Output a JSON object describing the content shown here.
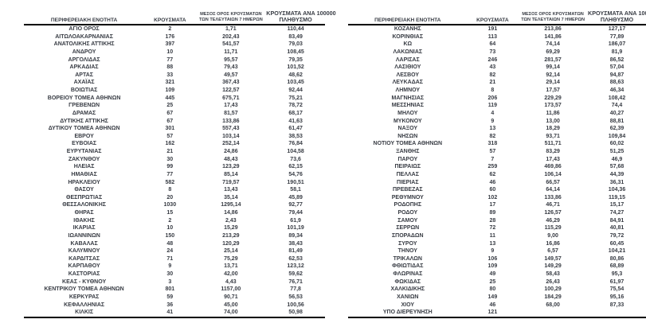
{
  "headers": {
    "region": "ΠΕΡΙΦΕΡΕΙΑΚΗ ΕΝΟΤΗΤΑ",
    "cases": "ΚΡΟΥΣΜΑΤΑ",
    "avg7_line1": "ΜΕΣΟΣ ΟΡΟΣ ΚΡΟΥΣΜΑΤΩΝ",
    "avg7_line2": "ΤΩΝ ΤΕΛΕΥΤΑΙΩΝ 7 ΗΜΕΡΩΝ",
    "per100k_line1": "ΚΡΟΥΣΜΑΤΑ ΑΝΑ 100000",
    "per100k_line2": "ΠΛΗΘΥΣΜΟ"
  },
  "colors": {
    "text": "#383c44",
    "rule": "#000000",
    "background": "#ffffff"
  },
  "left_table": {
    "rows": [
      {
        "region": "ΑΓΙΟ ΟΡΟΣ",
        "cases": "2",
        "avg7": "1,71",
        "per100k": "110,44"
      },
      {
        "region": "ΑΙΤΩΛΟΑΚΑΡΝΑΝΙΑΣ",
        "cases": "176",
        "avg7": "202,43",
        "per100k": "83,49"
      },
      {
        "region": "ΑΝΑΤΟΛΙΚΗΣ ΑΤΤΙΚΗΣ",
        "cases": "397",
        "avg7": "541,57",
        "per100k": "79,03"
      },
      {
        "region": "ΑΝΔΡΟΥ",
        "cases": "10",
        "avg7": "11,71",
        "per100k": "108,45"
      },
      {
        "region": "ΑΡΓΟΛΙΔΑΣ",
        "cases": "77",
        "avg7": "95,57",
        "per100k": "79,35"
      },
      {
        "region": "ΑΡΚΑΔΙΑΣ",
        "cases": "88",
        "avg7": "79,43",
        "per100k": "101,52"
      },
      {
        "region": "ΑΡΤΑΣ",
        "cases": "33",
        "avg7": "49,57",
        "per100k": "48,62"
      },
      {
        "region": "ΑΧΑΪΑΣ",
        "cases": "321",
        "avg7": "367,43",
        "per100k": "103,45"
      },
      {
        "region": "ΒΟΙΩΤΙΑΣ",
        "cases": "109",
        "avg7": "122,57",
        "per100k": "92,44"
      },
      {
        "region": "ΒΟΡΕΙΟΥ ΤΟΜΕΑ ΑΘΗΝΩΝ",
        "cases": "445",
        "avg7": "675,71",
        "per100k": "75,21"
      },
      {
        "region": "ΓΡΕΒΕΝΩΝ",
        "cases": "25",
        "avg7": "17,43",
        "per100k": "78,72"
      },
      {
        "region": "ΔΡΑΜΑΣ",
        "cases": "67",
        "avg7": "81,57",
        "per100k": "68,17"
      },
      {
        "region": "ΔΥΤΙΚΗΣ ΑΤΤΙΚΗΣ",
        "cases": "67",
        "avg7": "133,86",
        "per100k": "41,63"
      },
      {
        "region": "ΔΥΤΙΚΟΥ ΤΟΜΕΑ ΑΘΗΝΩΝ",
        "cases": "301",
        "avg7": "557,43",
        "per100k": "61,47"
      },
      {
        "region": "ΕΒΡΟΥ",
        "cases": "57",
        "avg7": "103,14",
        "per100k": "38,53"
      },
      {
        "region": "ΕΥΒΟΙΑΣ",
        "cases": "162",
        "avg7": "252,14",
        "per100k": "76,84"
      },
      {
        "region": "ΕΥΡΥΤΑΝΙΑΣ",
        "cases": "21",
        "avg7": "24,86",
        "per100k": "104,58"
      },
      {
        "region": "ΖΑΚΥΝΘΟΥ",
        "cases": "30",
        "avg7": "48,43",
        "per100k": "73,6"
      },
      {
        "region": "ΗΛΕΙΑΣ",
        "cases": "99",
        "avg7": "123,29",
        "per100k": "62,15"
      },
      {
        "region": "ΗΜΑΘΙΑΣ",
        "cases": "77",
        "avg7": "85,14",
        "per100k": "54,76"
      },
      {
        "region": "ΗΡΑΚΛΕΙΟΥ",
        "cases": "582",
        "avg7": "719,57",
        "per100k": "190,51"
      },
      {
        "region": "ΘΑΣΟΥ",
        "cases": "8",
        "avg7": "13,43",
        "per100k": "58,1"
      },
      {
        "region": "ΘΕΣΠΡΩΤΙΑΣ",
        "cases": "20",
        "avg7": "35,14",
        "per100k": "45,89"
      },
      {
        "region": "ΘΕΣΣΑΛΟΝΙΚΗΣ",
        "cases": "1030",
        "avg7": "1295,14",
        "per100k": "92,77"
      },
      {
        "region": "ΘΗΡΑΣ",
        "cases": "15",
        "avg7": "14,86",
        "per100k": "79,44"
      },
      {
        "region": "ΙΘΑΚΗΣ",
        "cases": "2",
        "avg7": "2,43",
        "per100k": "61,9"
      },
      {
        "region": "ΙΚΑΡΙΑΣ",
        "cases": "10",
        "avg7": "15,29",
        "per100k": "101,19"
      },
      {
        "region": "ΙΩΑΝΝΙΝΩΝ",
        "cases": "150",
        "avg7": "213,29",
        "per100k": "89,34"
      },
      {
        "region": "ΚΑΒΑΛΑΣ",
        "cases": "48",
        "avg7": "120,29",
        "per100k": "38,43"
      },
      {
        "region": "ΚΑΛΥΜΝΟΥ",
        "cases": "24",
        "avg7": "25,14",
        "per100k": "81,49"
      },
      {
        "region": "ΚΑΡΔΙΤΣΑΣ",
        "cases": "71",
        "avg7": "75,29",
        "per100k": "62,53"
      },
      {
        "region": "ΚΑΡΠΑΘΟΥ",
        "cases": "9",
        "avg7": "13,71",
        "per100k": "123,12"
      },
      {
        "region": "ΚΑΣΤΟΡΙΑΣ",
        "cases": "30",
        "avg7": "42,00",
        "per100k": "59,62"
      },
      {
        "region": "ΚΕΑΣ - ΚΥΘΝΟΥ",
        "cases": "3",
        "avg7": "4,43",
        "per100k": "76,71"
      },
      {
        "region": "ΚΕΝΤΡΙΚΟΥ ΤΟΜΕΑ ΑΘΗΝΩΝ",
        "cases": "801",
        "avg7": "1157,00",
        "per100k": "77,8"
      },
      {
        "region": "ΚΕΡΚΥΡΑΣ",
        "cases": "59",
        "avg7": "90,71",
        "per100k": "56,53"
      },
      {
        "region": "ΚΕΦΑΛΛΗΝΙΑΣ",
        "cases": "36",
        "avg7": "45,00",
        "per100k": "100,56"
      },
      {
        "region": "ΚΙΛΚΙΣ",
        "cases": "41",
        "avg7": "74,00",
        "per100k": "50,98"
      }
    ]
  },
  "right_table": {
    "rows": [
      {
        "region": "ΚΟΖΑΝΗΣ",
        "cases": "191",
        "avg7": "213,86",
        "per100k": "127,17"
      },
      {
        "region": "ΚΟΡΙΝΘΙΑΣ",
        "cases": "113",
        "avg7": "141,86",
        "per100k": "77,89"
      },
      {
        "region": "ΚΩ",
        "cases": "64",
        "avg7": "74,14",
        "per100k": "186,07"
      },
      {
        "region": "ΛΑΚΩΝΙΑΣ",
        "cases": "73",
        "avg7": "69,29",
        "per100k": "81,9"
      },
      {
        "region": "ΛΑΡΙΣΑΣ",
        "cases": "246",
        "avg7": "281,57",
        "per100k": "86,52"
      },
      {
        "region": "ΛΑΣΙΘΙΟΥ",
        "cases": "43",
        "avg7": "99,14",
        "per100k": "57,04"
      },
      {
        "region": "ΛΕΣΒΟΥ",
        "cases": "82",
        "avg7": "92,14",
        "per100k": "94,87"
      },
      {
        "region": "ΛΕΥΚΑΔΑΣ",
        "cases": "21",
        "avg7": "29,14",
        "per100k": "88,63"
      },
      {
        "region": "ΛΗΜΝΟΥ",
        "cases": "8",
        "avg7": "17,57",
        "per100k": "46,34"
      },
      {
        "region": "ΜΑΓΝΗΣΙΑΣ",
        "cases": "206",
        "avg7": "229,29",
        "per100k": "108,42"
      },
      {
        "region": "ΜΕΣΣΗΝΙΑΣ",
        "cases": "119",
        "avg7": "173,57",
        "per100k": "74,4"
      },
      {
        "region": "ΜΗΛΟΥ",
        "cases": "4",
        "avg7": "11,86",
        "per100k": "40,27"
      },
      {
        "region": "ΜΥΚΟΝΟΥ",
        "cases": "9",
        "avg7": "13,00",
        "per100k": "88,81"
      },
      {
        "region": "ΝΑΞΟΥ",
        "cases": "13",
        "avg7": "18,29",
        "per100k": "62,39"
      },
      {
        "region": "ΝΗΣΩΝ",
        "cases": "82",
        "avg7": "93,71",
        "per100k": "109,84"
      },
      {
        "region": "ΝΟΤΙΟΥ ΤΟΜΕΑ ΑΘΗΝΩΝ",
        "cases": "318",
        "avg7": "511,71",
        "per100k": "60,02"
      },
      {
        "region": "ΞΑΝΘΗΣ",
        "cases": "57",
        "avg7": "83,29",
        "per100k": "51,25"
      },
      {
        "region": "ΠΑΡΟΥ",
        "cases": "7",
        "avg7": "17,43",
        "per100k": "46,9"
      },
      {
        "region": "ΠΕΙΡΑΙΩΣ",
        "cases": "259",
        "avg7": "469,86",
        "per100k": "57,68"
      },
      {
        "region": "ΠΕΛΛΑΣ",
        "cases": "62",
        "avg7": "106,14",
        "per100k": "44,39"
      },
      {
        "region": "ΠΙΕΡΙΑΣ",
        "cases": "46",
        "avg7": "66,57",
        "per100k": "36,31"
      },
      {
        "region": "ΠΡΕΒΕΖΑΣ",
        "cases": "60",
        "avg7": "64,14",
        "per100k": "104,36"
      },
      {
        "region": "ΡΕΘΥΜΝΟΥ",
        "cases": "102",
        "avg7": "133,86",
        "per100k": "119,15"
      },
      {
        "region": "ΡΟΔΟΠΗΣ",
        "cases": "17",
        "avg7": "46,71",
        "per100k": "15,17"
      },
      {
        "region": "ΡΟΔΟΥ",
        "cases": "89",
        "avg7": "126,57",
        "per100k": "74,27"
      },
      {
        "region": "ΣΑΜΟΥ",
        "cases": "28",
        "avg7": "46,29",
        "per100k": "84,91"
      },
      {
        "region": "ΣΕΡΡΩΝ",
        "cases": "72",
        "avg7": "115,29",
        "per100k": "40,81"
      },
      {
        "region": "ΣΠΟΡΑΔΩΝ",
        "cases": "11",
        "avg7": "9,00",
        "per100k": "79,72"
      },
      {
        "region": "ΣΥΡΟΥ",
        "cases": "13",
        "avg7": "16,86",
        "per100k": "60,45"
      },
      {
        "region": "ΤΗΝΟΥ",
        "cases": "9",
        "avg7": "6,57",
        "per100k": "104,21"
      },
      {
        "region": "ΤΡΙΚΑΛΩΝ",
        "cases": "106",
        "avg7": "149,57",
        "per100k": "80,86"
      },
      {
        "region": "ΦΘΙΩΤΙΔΑΣ",
        "cases": "109",
        "avg7": "149,29",
        "per100k": "68,89"
      },
      {
        "region": "ΦΛΩΡΙΝΑΣ",
        "cases": "49",
        "avg7": "58,43",
        "per100k": "95,3"
      },
      {
        "region": "ΦΩΚΙΔΑΣ",
        "cases": "25",
        "avg7": "26,43",
        "per100k": "61,97"
      },
      {
        "region": "ΧΑΛΚΙΔΙΚΗΣ",
        "cases": "80",
        "avg7": "100,29",
        "per100k": "75,54"
      },
      {
        "region": "ΧΑΝΙΩΝ",
        "cases": "149",
        "avg7": "184,29",
        "per100k": "95,16"
      },
      {
        "region": "ΧΙΟΥ",
        "cases": "46",
        "avg7": "68,00",
        "per100k": "87,33"
      },
      {
        "region": "ΥΠΟ ΔΙΕΡΕΥΝΗΣΗ",
        "cases": "121",
        "avg7": "",
        "per100k": ""
      }
    ]
  }
}
